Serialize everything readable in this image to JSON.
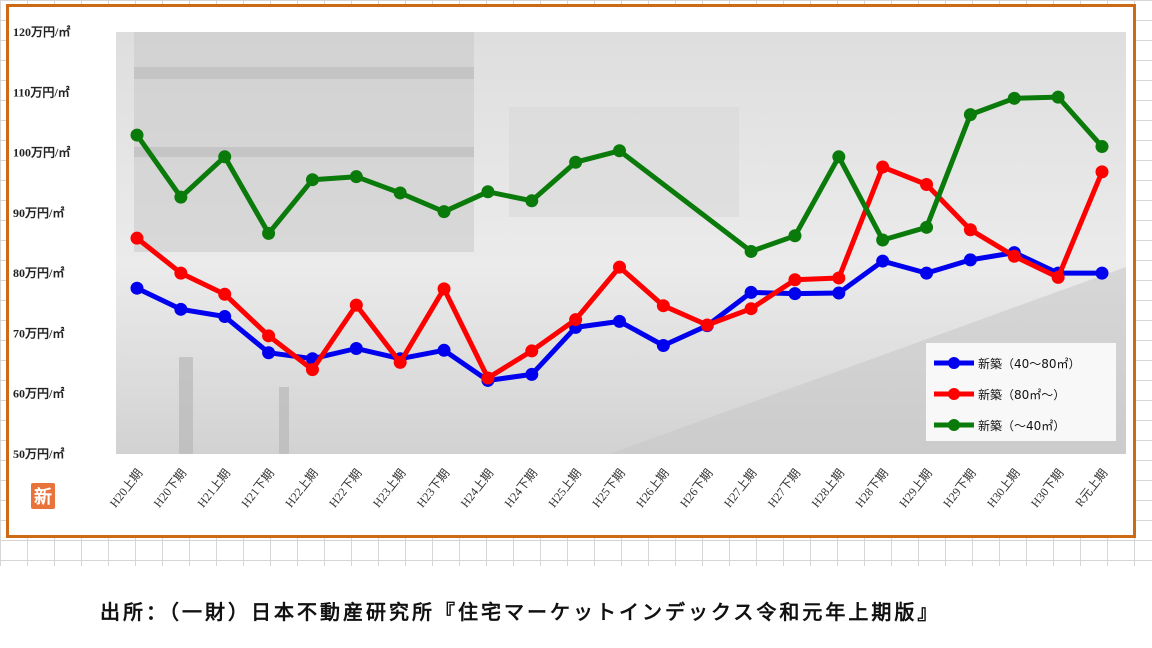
{
  "badge": "新",
  "source": "出所：（一財）日本不動産研究所『住宅マーケットインデックス令和元年上期版』",
  "chart_data": {
    "type": "line",
    "ylim": [
      50,
      120
    ],
    "y_ticks": [
      {
        "value": 120,
        "label": "120万円/㎡"
      },
      {
        "value": 110,
        "label": "110万円/㎡"
      },
      {
        "value": 100,
        "label": "100万円/㎡"
      },
      {
        "value": 90,
        "label": "90万円/㎡"
      },
      {
        "value": 80,
        "label": "80万円/㎡"
      },
      {
        "value": 70,
        "label": "70万円/㎡"
      },
      {
        "value": 60,
        "label": "60万円/㎡"
      },
      {
        "value": 50,
        "label": "50万円/㎡"
      }
    ],
    "categories": [
      "H20上期",
      "H20下期",
      "H21上期",
      "H21下期",
      "H22上期",
      "H22下期",
      "H23上期",
      "H23下期",
      "H24上期",
      "H24下期",
      "H25上期",
      "H25下期",
      "H26上期",
      "H26下期",
      "H27上期",
      "H27下期",
      "H28上期",
      "H28下期",
      "H29上期",
      "H29下期",
      "H30上期",
      "H30下期",
      "R元上期"
    ],
    "legend_position": "bottom-right",
    "series": [
      {
        "name": "新築（40～80㎡）",
        "color": "#0000ee",
        "values": [
          77.5,
          74,
          72.8,
          66.8,
          65.8,
          67.5,
          65.8,
          67.2,
          62.2,
          63.2,
          71,
          72,
          68,
          71.3,
          76.8,
          76.6,
          76.7,
          82,
          80,
          82.2,
          83.4,
          80,
          80
        ]
      },
      {
        "name": "新築（80㎡～）",
        "color": "#ff0000",
        "values": [
          85.8,
          80,
          76.5,
          69.6,
          64,
          74.7,
          65.2,
          77.4,
          62.6,
          67.1,
          72.3,
          81,
          74.6,
          71.4,
          74.1,
          78.9,
          79.2,
          97.6,
          94.7,
          87.2,
          82.8,
          79.3,
          96.8
        ]
      },
      {
        "name": "新築（～40㎡）",
        "color": "#0a7a0a",
        "values": [
          102.9,
          92.6,
          99.3,
          86.6,
          95.5,
          96,
          93.3,
          90.2,
          93.5,
          92,
          98.4,
          100.3,
          null,
          null,
          83.6,
          86.2,
          99.3,
          85.5,
          87.6,
          106.3,
          109,
          109.2,
          101
        ]
      }
    ]
  }
}
